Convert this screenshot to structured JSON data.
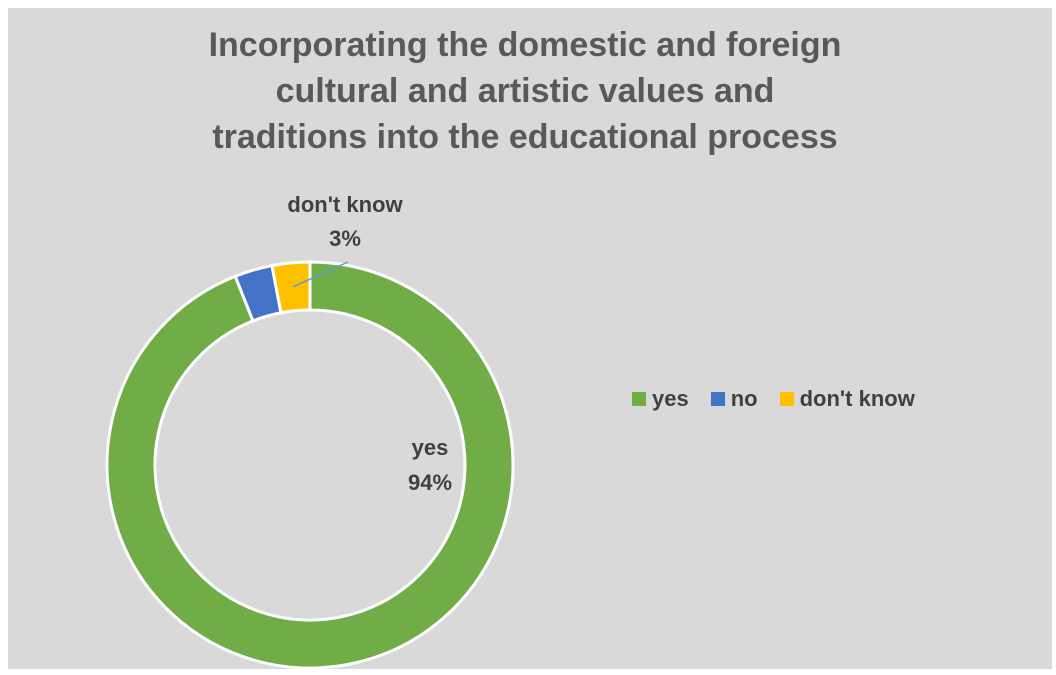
{
  "chart_data": {
    "type": "pie",
    "subtype": "doughnut",
    "title": "Incorporating the domestic and foreign cultural and artistic values and traditions into the educational process",
    "categories": [
      "yes",
      "no",
      "don't know"
    ],
    "values": [
      94,
      3,
      3
    ],
    "data_labels": [
      {
        "category": "yes",
        "value": "94%"
      },
      {
        "category": "don't know",
        "value": "3%"
      }
    ],
    "colors": [
      "#70ad47",
      "#4472c4",
      "#ffc000"
    ],
    "legend": "right",
    "background": "#d9d9d9"
  }
}
